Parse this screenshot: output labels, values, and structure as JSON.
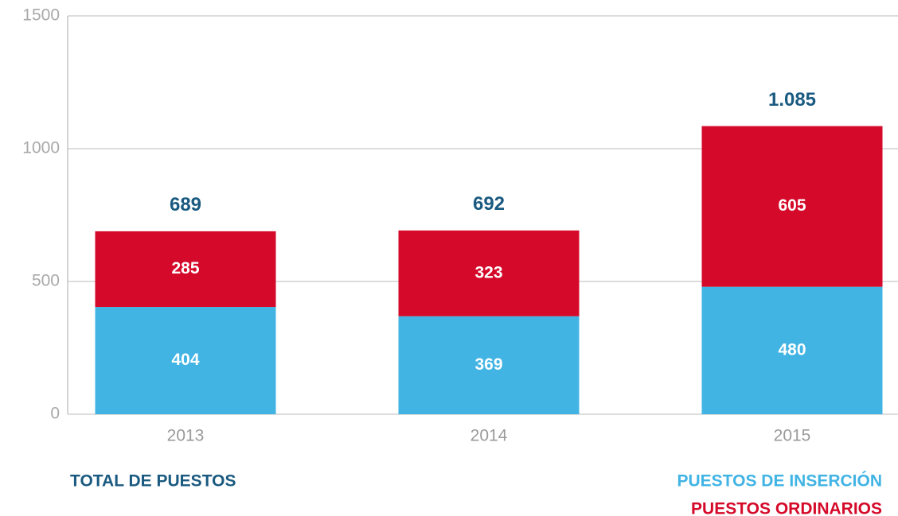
{
  "chart_data": {
    "type": "stacked_bar",
    "categories": [
      "2013",
      "2014",
      "2015"
    ],
    "series": [
      {
        "name": "PUESTOS DE INSERCIÓN",
        "color": "#41b4e4",
        "values": [
          404,
          369,
          480
        ]
      },
      {
        "name": "PUESTOS ORDINARIOS",
        "color": "#d50a2a",
        "values": [
          285,
          323,
          605
        ]
      }
    ],
    "totals": {
      "name": "TOTAL DE PUESTOS",
      "color": "#1a5a80",
      "values": [
        689,
        692,
        1085
      ],
      "value_labels": [
        "689",
        "692",
        "1.085"
      ]
    },
    "ylim": [
      0,
      1500
    ],
    "yticks": [
      0,
      500,
      1000,
      1500
    ],
    "grid": true
  }
}
